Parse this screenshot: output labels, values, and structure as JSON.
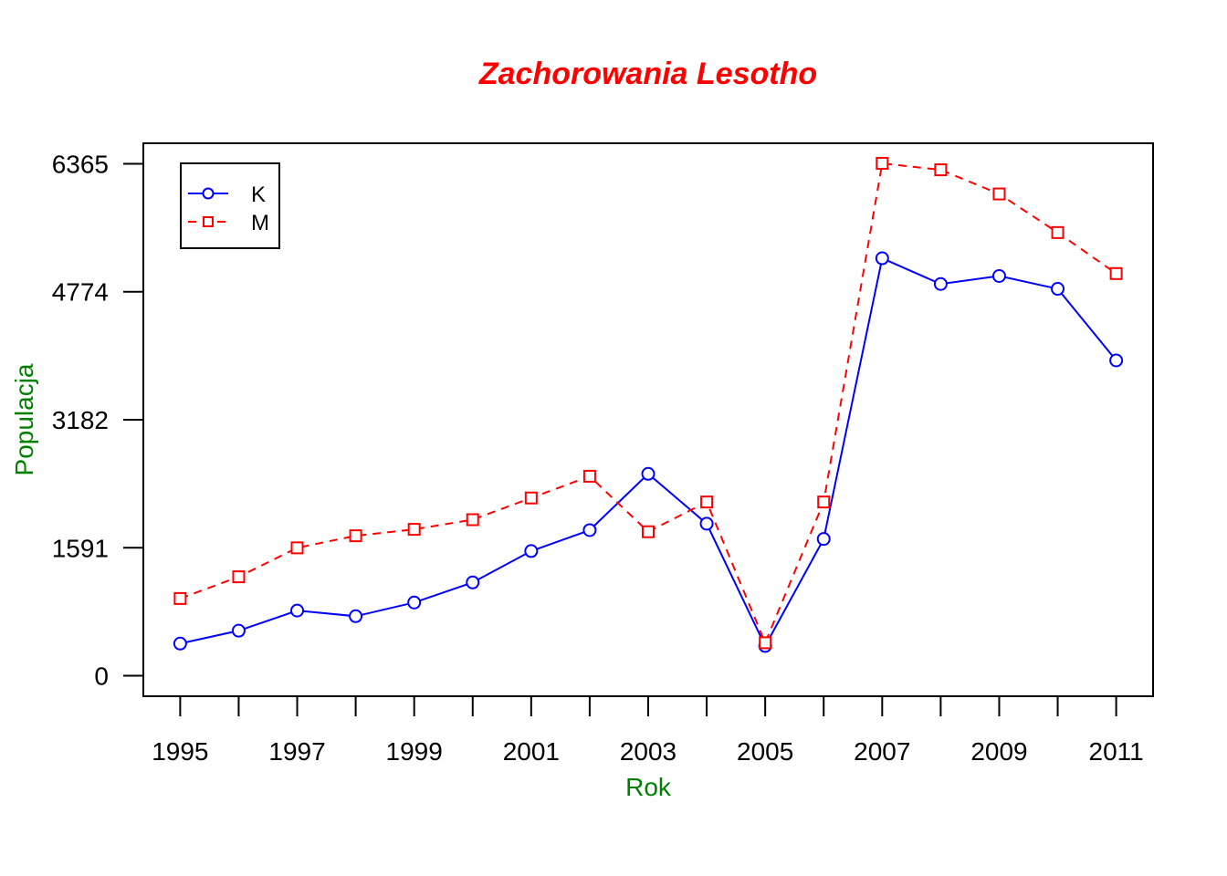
{
  "chart_data": {
    "type": "line",
    "title": "Zachorowania Lesotho",
    "xlabel": "Rok",
    "ylabel": "Populacja",
    "x": [
      1995,
      1996,
      1997,
      1998,
      1999,
      2000,
      2001,
      2002,
      2003,
      2004,
      2005,
      2006,
      2007,
      2008,
      2009,
      2010,
      2011
    ],
    "x_tick_labels": [
      "1995",
      "1997",
      "1999",
      "2001",
      "2003",
      "2005",
      "2007",
      "2009",
      "2011"
    ],
    "y_ticks": [
      0,
      1591,
      3182,
      4774,
      6365
    ],
    "y_tick_labels": [
      "0",
      "1591",
      "3182",
      "4774",
      "6365"
    ],
    "xlim": [
      1994.37,
      2011.63
    ],
    "ylim": [
      -255,
      6620
    ],
    "grid": false,
    "legend_position": "top-left",
    "series": [
      {
        "name": "K",
        "color": "#0000ff",
        "line_style": "solid",
        "marker": "circle",
        "values": [
          400,
          560,
          810,
          740,
          910,
          1160,
          1550,
          1810,
          2510,
          1890,
          370,
          1700,
          5190,
          4870,
          4970,
          4810,
          3920
        ]
      },
      {
        "name": "M",
        "color": "#ff0000",
        "line_style": "dashed",
        "marker": "square",
        "values": [
          960,
          1230,
          1590,
          1740,
          1820,
          1940,
          2210,
          2480,
          1790,
          2160,
          410,
          2160,
          6370,
          6290,
          5990,
          5510,
          5000
        ]
      }
    ],
    "colors": {
      "title": "#ff0000",
      "axis_label": "#008000"
    }
  }
}
